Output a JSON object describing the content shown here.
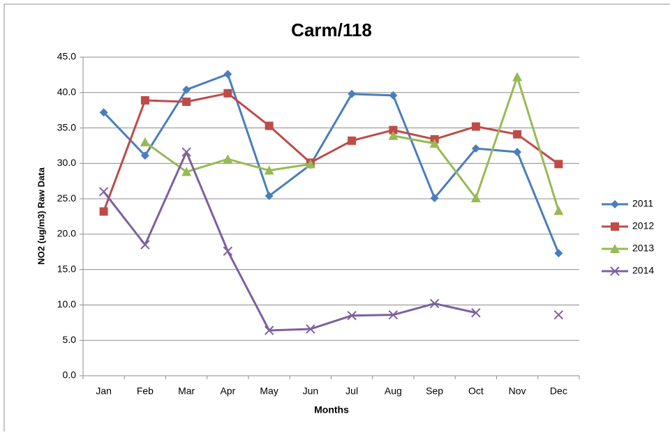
{
  "chart_data": {
    "type": "line",
    "title": "Carm/118",
    "x_label": "Months",
    "y_label": "NO2 (ug/m3) Raw Data",
    "categories": [
      "Jan",
      "Feb",
      "Mar",
      "Apr",
      "May",
      "Jun",
      "Jul",
      "Aug",
      "Sep",
      "Oct",
      "Nov",
      "Dec"
    ],
    "series": [
      {
        "name": "2011",
        "color": "#4a7ebb",
        "marker": "diamond",
        "values": [
          37.2,
          31.1,
          40.4,
          42.6,
          25.4,
          29.8,
          39.8,
          39.6,
          25.1,
          32.1,
          31.6,
          17.3
        ]
      },
      {
        "name": "2012",
        "color": "#be4b48",
        "marker": "square",
        "values": [
          23.2,
          38.9,
          38.7,
          39.9,
          35.3,
          30.1,
          33.2,
          34.7,
          33.4,
          35.2,
          34.1,
          29.9
        ]
      },
      {
        "name": "2013",
        "color": "#98b954",
        "marker": "triangle",
        "values": [
          null,
          33.0,
          28.8,
          30.6,
          29.0,
          29.9,
          null,
          33.9,
          32.8,
          25.1,
          42.2,
          23.3
        ]
      },
      {
        "name": "2014",
        "color": "#7d60a0",
        "marker": "x",
        "values": [
          26.0,
          18.5,
          31.6,
          17.6,
          6.4,
          6.6,
          8.5,
          8.6,
          10.2,
          8.9,
          null,
          8.6
        ]
      }
    ],
    "ylim": [
      0,
      45
    ],
    "yticks": [
      {
        "value": 0,
        "label": "0.0"
      },
      {
        "value": 5,
        "label": "5.0"
      },
      {
        "value": 10,
        "label": "10.0"
      },
      {
        "value": 15,
        "label": "15.0"
      },
      {
        "value": 20,
        "label": "20.0"
      },
      {
        "value": 25,
        "label": "25.0"
      },
      {
        "value": 30,
        "label": "30.0"
      },
      {
        "value": 35,
        "label": "35.0"
      },
      {
        "value": 40,
        "label": "40.0"
      },
      {
        "value": 45,
        "label": "45.0"
      }
    ],
    "grid": true,
    "legend": "right"
  }
}
